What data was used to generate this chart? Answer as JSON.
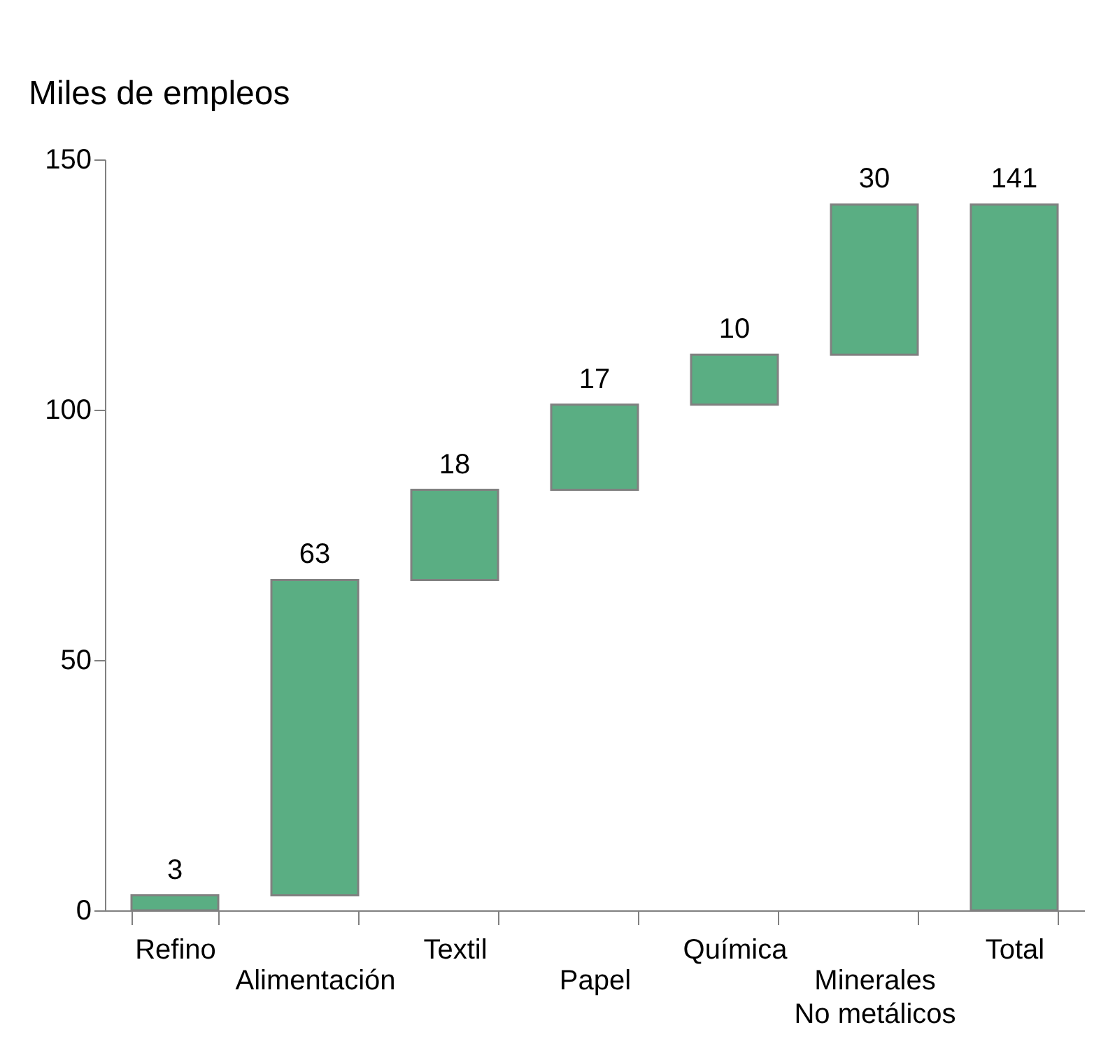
{
  "chart_data": {
    "type": "bar",
    "ylabel": "Miles de empleos",
    "categories": [
      "Refino",
      "Alimentación",
      "Textil",
      "Papel",
      "Química",
      "Minerales\nNo metálicos",
      "Total"
    ],
    "values": [
      3,
      63,
      18,
      17,
      10,
      30,
      141
    ],
    "base": [
      0,
      3,
      66,
      84,
      101,
      111,
      0
    ],
    "color": "#5aae83",
    "ylim": [
      0,
      150
    ],
    "yticks": [
      0,
      50,
      100,
      150
    ],
    "data_labels": true,
    "grid": false
  }
}
